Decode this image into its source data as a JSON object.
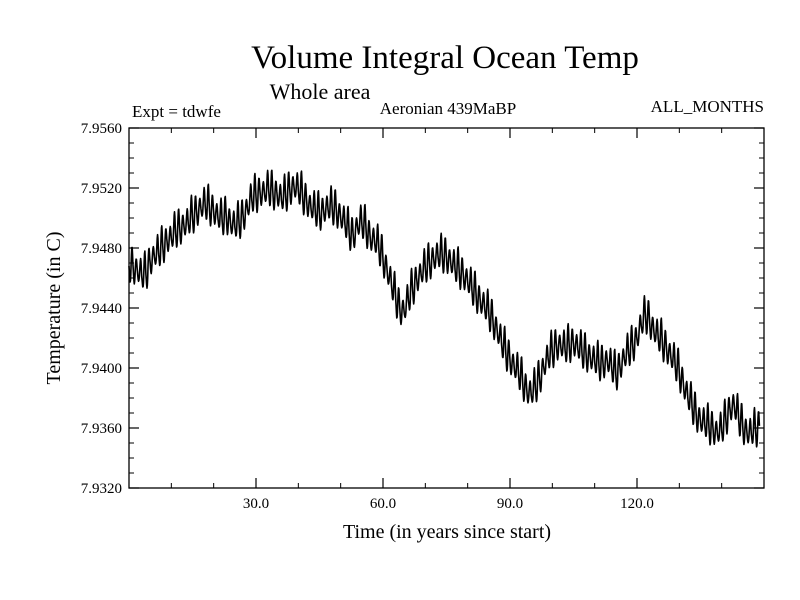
{
  "chart_data": {
    "type": "line",
    "title": "Volume Integral Ocean Temp",
    "subtitle": "Whole area",
    "label_left": "Expt = tdwfe",
    "label_center": "Aeronian 439MaBP",
    "label_right": "ALL_MONTHS",
    "xlabel": "Time (in years since start)",
    "ylabel": "Temperature (in C)",
    "xlim": [
      0,
      150
    ],
    "ylim": [
      7.932,
      7.956
    ],
    "x_ticks": [
      30,
      60,
      90,
      120
    ],
    "x_tick_labels": [
      "30.0",
      "60.0",
      "90.0",
      "120.0"
    ],
    "x_minor_step": 10,
    "y_ticks": [
      7.932,
      7.936,
      7.94,
      7.944,
      7.948,
      7.952,
      7.956
    ],
    "y_tick_labels": [
      "7.9320",
      "7.9360",
      "7.9400",
      "7.9440",
      "7.9480",
      "7.9520",
      "7.9560"
    ],
    "y_minor_step": 0.001,
    "grid": false,
    "series": [
      {
        "name": "Volume integral ocean temperature",
        "color": "#000000",
        "x_start": 0,
        "x_step": 1,
        "annual_means": [
          7.9468,
          7.9466,
          7.9464,
          7.9461,
          7.9462,
          7.947,
          7.9474,
          7.9476,
          7.948,
          7.9484,
          7.9486,
          7.949,
          7.9492,
          7.9494,
          7.9496,
          7.95,
          7.9503,
          7.9506,
          7.9508,
          7.9506,
          7.9504,
          7.95,
          7.9498,
          7.95,
          7.9496,
          7.9494,
          7.9496,
          7.95,
          7.9506,
          7.9512,
          7.9514,
          7.9516,
          7.9516,
          7.9518,
          7.9516,
          7.9515,
          7.9512,
          7.9514,
          7.9518,
          7.952,
          7.9518,
          7.9514,
          7.951,
          7.9506,
          7.9504,
          7.9502,
          7.9504,
          7.9506,
          7.9506,
          7.9504,
          7.95,
          7.9496,
          7.949,
          7.9487,
          7.9494,
          7.9496,
          7.9492,
          7.9486,
          7.9484,
          7.948,
          7.9472,
          7.9464,
          7.9455,
          7.9446,
          7.9438,
          7.9437,
          7.9445,
          7.9452,
          7.9458,
          7.9462,
          7.9466,
          7.9469,
          7.9472,
          7.9474,
          7.9474,
          7.9473,
          7.947,
          7.9466,
          7.9464,
          7.9461,
          7.9457,
          7.9452,
          7.9448,
          7.9444,
          7.944,
          7.9436,
          7.943,
          7.9424,
          7.9416,
          7.941,
          7.9405,
          7.94,
          7.9396,
          7.939,
          7.9384,
          7.9382,
          7.9386,
          7.9392,
          7.94,
          7.9406,
          7.941,
          7.9414,
          7.9414,
          7.9412,
          7.9414,
          7.9416,
          7.9413,
          7.941,
          7.9408,
          7.9406,
          7.9404,
          7.9402,
          7.9402,
          7.9404,
          7.94,
          7.9395,
          7.94,
          7.9406,
          7.941,
          7.9414,
          7.9419,
          7.9428,
          7.9434,
          7.943,
          7.9424,
          7.942,
          7.9416,
          7.9412,
          7.9407,
          7.9402,
          7.9396,
          7.9388,
          7.938,
          7.9374,
          7.9368,
          7.9364,
          7.9362,
          7.936,
          7.9358,
          7.9356,
          7.9358,
          7.9365,
          7.9372,
          7.9374,
          7.9366,
          7.936,
          7.9356,
          7.9356,
          7.9358
        ]
      }
    ]
  }
}
